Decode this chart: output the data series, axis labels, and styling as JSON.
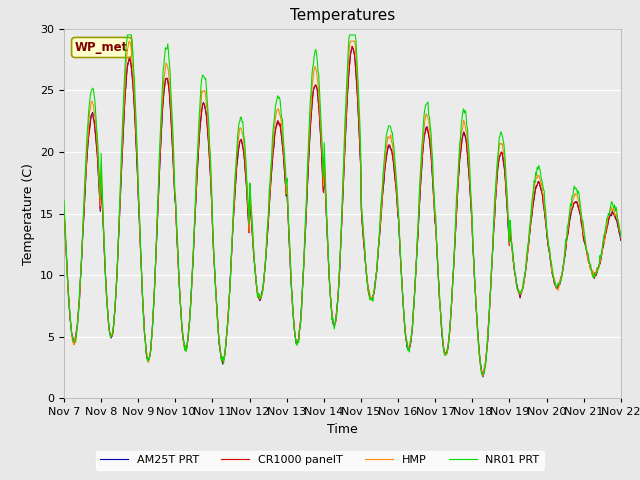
{
  "title": "Temperatures",
  "xlabel": "Time",
  "ylabel": "Temperature (C)",
  "ylim": [
    0,
    30
  ],
  "tick_labels": [
    "Nov 7",
    "Nov 8",
    "Nov 9",
    "Nov 10",
    "Nov 11",
    "Nov 12",
    "Nov 13",
    "Nov 14",
    "Nov 15",
    "Nov 16",
    "Nov 17",
    "Nov 18",
    "Nov 19",
    "Nov 20",
    "Nov 21",
    "Nov 22"
  ],
  "series_colors": {
    "CR1000 panelT": "#dd0000",
    "HMP": "#ff8800",
    "NR01 PRT": "#00dd00",
    "AM25T PRT": "#0000bb"
  },
  "annotation_text": "WP_met",
  "fig_facecolor": "#e8e8e8",
  "plot_facecolor": "#ebebeb",
  "grid_color": "#ffffff",
  "linewidth": 0.8,
  "title_fontsize": 11,
  "axis_fontsize": 9,
  "tick_fontsize": 8
}
